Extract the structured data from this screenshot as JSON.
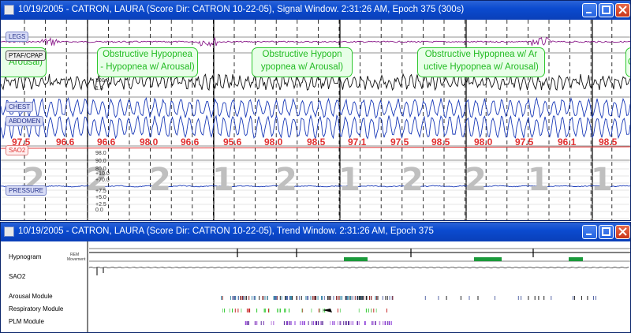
{
  "signal_window": {
    "title": "10/19/2005 - CATRON, LAURA (Score Dir: CATRON 10-22-05), Signal Window. 2:31:26 AM, Epoch 375 (300s)",
    "channels": [
      "LEGS",
      "PTAF/CPAP",
      "CHEST",
      "ABDOMEN",
      "SAO2",
      "PRESSURE"
    ],
    "events": [
      {
        "line1": "Arousal)",
        "line2": ""
      },
      {
        "line1": "Obstructive Hypopnea",
        "line2": "- Hypopnea w/ Arousal)"
      },
      {
        "line1": "Obstructive Hypopn",
        "line2": "ypopnea w/ Arousal)"
      },
      {
        "line1": "Obstructive Hypopnea w/ Ar",
        "line2": "uctive Hypopnea w/ Arousal)"
      },
      {
        "line1": "O",
        "line2": ""
      }
    ],
    "sao2_values": [
      "97.5",
      "96.6",
      "96.6",
      "98.0",
      "96.6",
      "95.6",
      "98.0",
      "98.5",
      "97.1",
      "97.5",
      "98.5",
      "98.0",
      "97.5",
      "96.1",
      "98.5"
    ],
    "sleep_stages": [
      "2",
      "2",
      "2",
      "1",
      "2",
      "1",
      "2",
      "2",
      "1",
      "1"
    ],
    "scale_upper": [
      "300.0",
      "1.0"
    ],
    "scale_lower": [
      "98.0",
      "90.0",
      "80.0",
      "+10.0",
      "+70.0",
      "+7.5",
      "+5.0",
      "+2.5",
      "0.0"
    ]
  },
  "trend_window": {
    "title": "10/19/2005 - CATRON, LAURA (Score Dir: CATRON 10-22-05), Trend Window. 2:31:26 AM, Epoch 375",
    "rows": [
      "Hypnogram",
      "SAO2",
      "Arousal Module",
      "Respiratory Module",
      "PLM Module"
    ],
    "hyp_sub_labels": [
      "REM",
      "Movement"
    ]
  },
  "colors": {
    "titlebar": "#0b4bd0",
    "legs": "#8a1a8a",
    "resp": "#1a3ab8",
    "sao2": "#e03030",
    "event": "#22bb22"
  }
}
